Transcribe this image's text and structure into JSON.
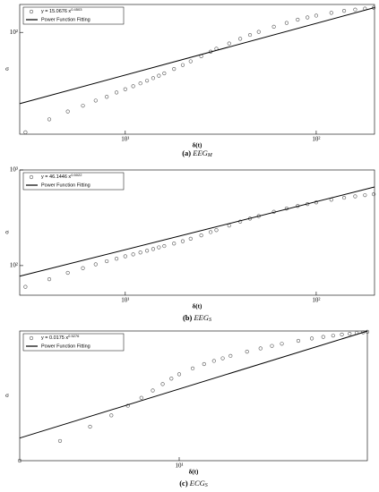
{
  "chart_data": [
    {
      "type": "scatter",
      "x_label": "δ(t)",
      "y_label": "σ",
      "caption_label": "(a)",
      "caption": "EEG",
      "caption_sub": "M",
      "log_x": true,
      "log_y": true,
      "xlim": [
        2.8,
        202
      ],
      "ylim": [
        13,
        175
      ],
      "xticks": [
        {
          "value": 10,
          "label": "10¹"
        },
        {
          "value": 100,
          "label": "10²"
        }
      ],
      "yticks": [
        {
          "value": 100,
          "label": "10²"
        }
      ],
      "series": [
        {
          "name": "y = 15.0676 x",
          "exponent": "0.4503",
          "style": "circles",
          "color": "#555555",
          "x": [
            3,
            4,
            5,
            6,
            7,
            8,
            9,
            10,
            11,
            12,
            13,
            14,
            15,
            16,
            18,
            20,
            22,
            25,
            28,
            30,
            35,
            40,
            45,
            50,
            60,
            70,
            80,
            90,
            100,
            120,
            140,
            160,
            180,
            200
          ],
          "values": [
            13.5,
            17.5,
            20.5,
            23,
            25.5,
            27.5,
            30,
            32,
            34,
            36,
            38,
            40,
            42,
            44,
            48,
            52,
            56,
            62,
            68,
            72,
            80,
            88,
            95,
            101,
            112,
            121,
            129,
            135,
            140,
            148,
            154,
            158,
            161,
            164
          ]
        },
        {
          "name": "Power Function Fitting",
          "style": "line",
          "color": "#000000",
          "x": [
            2.8,
            202
          ],
          "values": [
            23.96,
            164.4
          ]
        }
      ]
    },
    {
      "type": "scatter",
      "x_label": "δ(t)",
      "y_label": "σ",
      "caption_label": "(b)",
      "caption": "EEG",
      "caption_sub": "S",
      "log_x": true,
      "log_y": true,
      "xlim": [
        2.8,
        202
      ],
      "ylim": [
        49,
        1000
      ],
      "xticks": [
        {
          "value": 10,
          "label": "10¹"
        },
        {
          "value": 100,
          "label": "10²"
        }
      ],
      "yticks": [
        {
          "value": 100,
          "label": "10²"
        },
        {
          "value": 1000,
          "label": "10³"
        }
      ],
      "series": [
        {
          "name": "y = 46.1446 x",
          "exponent": "0.5022",
          "style": "circles",
          "color": "#555555",
          "x": [
            3,
            4,
            5,
            6,
            7,
            8,
            9,
            10,
            11,
            12,
            13,
            14,
            15,
            16,
            18,
            20,
            22,
            25,
            28,
            30,
            35,
            40,
            45,
            50,
            60,
            70,
            80,
            90,
            100,
            120,
            140,
            160,
            180,
            200
          ],
          "values": [
            60,
            72,
            84,
            94,
            103,
            111,
            118,
            125,
            131,
            137,
            143,
            149,
            155,
            160,
            170,
            180,
            191,
            207,
            224,
            235,
            262,
            288,
            310,
            330,
            365,
            395,
            420,
            440,
            458,
            488,
            512,
            530,
            545,
            558
          ]
        },
        {
          "name": "Power Function Fitting",
          "style": "line",
          "color": "#000000",
          "x": [
            2.8,
            202
          ],
          "values": [
            77.4,
            663.6
          ]
        }
      ]
    },
    {
      "type": "scatter",
      "x_label": "δ(t)",
      "y_label": "σ",
      "caption_label": "(c)",
      "caption": "ECG",
      "caption_sub": "S",
      "log_x": true,
      "log_y": true,
      "xlim": [
        1.16,
        127
      ],
      "ylim": [
        0.0112,
        0.226
      ],
      "xticks": [
        {
          "value": 10,
          "label": "10¹"
        }
      ],
      "series": [
        {
          "name": "y = 0.0175 x",
          "exponent": "0.5276",
          "style": "circles",
          "color": "#555555",
          "x": [
            1.16,
            2,
            3,
            4,
            5,
            6,
            7,
            8,
            9,
            10,
            12,
            14,
            16,
            18,
            20,
            25,
            30,
            35,
            40,
            50,
            60,
            70,
            80,
            90,
            100,
            110,
            120,
            127
          ],
          "values": [
            0.0112,
            0.0177,
            0.0246,
            0.032,
            0.04,
            0.048,
            0.057,
            0.066,
            0.075,
            0.083,
            0.095,
            0.105,
            0.113,
            0.12,
            0.127,
            0.14,
            0.151,
            0.16,
            0.168,
            0.18,
            0.19,
            0.197,
            0.203,
            0.208,
            0.212,
            0.216,
            0.219,
            0.222
          ]
        },
        {
          "name": "Power Function Fitting",
          "style": "line",
          "color": "#000000",
          "x": [
            1.16,
            127
          ],
          "values": [
            0.01892,
            0.2254
          ]
        }
      ]
    }
  ]
}
